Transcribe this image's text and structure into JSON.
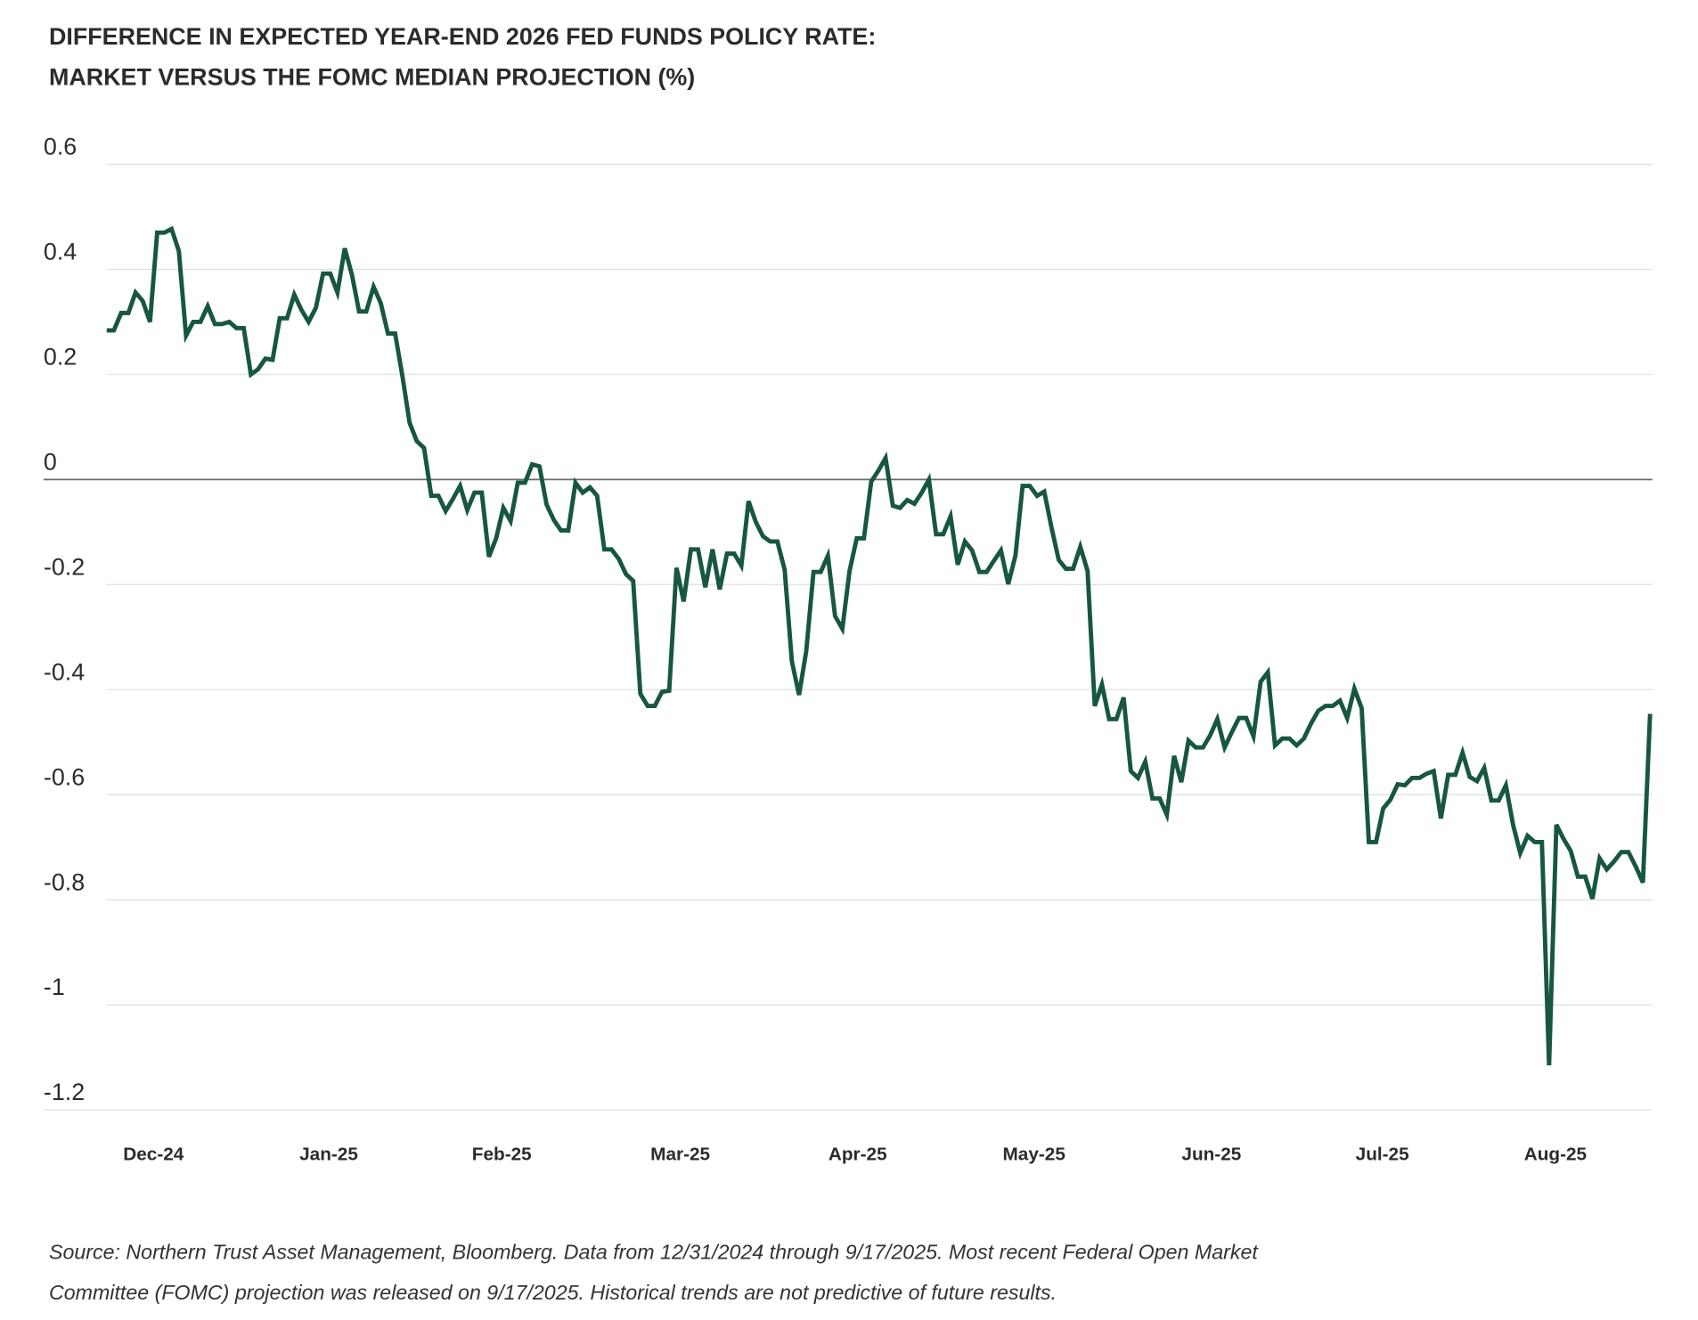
{
  "title_line1": "DIFFERENCE IN EXPECTED YEAR-END 2026 FED FUNDS POLICY RATE:",
  "title_line2": "MARKET VERSUS THE FOMC MEDIAN PROJECTION (%)",
  "footnote_line1": "Source: Northern Trust Asset Management, Bloomberg. Data from 12/31/2024 through 9/17/2025. Most recent Federal Open Market",
  "footnote_line2": "Committee (FOMC) projection was released on 9/17/2025. Historical trends are not predictive of future results.",
  "chart_data": {
    "type": "line",
    "title": "DIFFERENCE IN EXPECTED YEAR-END 2026 FED FUNDS POLICY RATE: MARKET VERSUS THE FOMC MEDIAN PROJECTION (%)",
    "xlabel": "",
    "ylabel": "",
    "x_start": "12/31/2024",
    "x_end": "9/17/2025",
    "x_tick_labels": [
      "Dec-24",
      "Jan-25",
      "Feb-25",
      "Mar-25",
      "Apr-25",
      "May-25",
      "Jun-25",
      "Jul-25",
      "Aug-25"
    ],
    "y_ticks": [
      0.6,
      0.4,
      0.2,
      0,
      -0.2,
      -0.4,
      -0.6,
      -0.8,
      -1,
      -1.2
    ],
    "y_tick_labels": [
      "0.6",
      "0.4",
      "0.2",
      "0",
      "-0.2",
      "-0.4",
      "-0.6",
      "-0.8",
      "-1",
      "-1.2"
    ],
    "ylim": [
      -1.2,
      0.6
    ],
    "grid": true,
    "line_color": "#17573f",
    "values": [
      0.284,
      0.284,
      0.317,
      0.317,
      0.356,
      0.34,
      0.3,
      0.47,
      0.47,
      0.477,
      0.435,
      0.274,
      0.3,
      0.3,
      0.33,
      0.296,
      0.296,
      0.3,
      0.288,
      0.288,
      0.2,
      0.21,
      0.23,
      0.228,
      0.307,
      0.307,
      0.352,
      0.323,
      0.3,
      0.327,
      0.392,
      0.392,
      0.356,
      0.44,
      0.39,
      0.32,
      0.32,
      0.367,
      0.336,
      0.278,
      0.278,
      0.197,
      0.108,
      0.073,
      0.06,
      -0.031,
      -0.031,
      -0.06,
      -0.037,
      -0.012,
      -0.058,
      -0.025,
      -0.025,
      -0.147,
      -0.112,
      -0.054,
      -0.079,
      -0.006,
      -0.006,
      0.029,
      0.025,
      -0.048,
      -0.077,
      -0.097,
      -0.097,
      -0.006,
      -0.025,
      -0.015,
      -0.031,
      -0.133,
      -0.133,
      -0.151,
      -0.18,
      -0.193,
      -0.408,
      -0.431,
      -0.431,
      -0.404,
      -0.402,
      -0.168,
      -0.232,
      -0.133,
      -0.133,
      -0.205,
      -0.133,
      -0.209,
      -0.141,
      -0.141,
      -0.164,
      -0.041,
      -0.081,
      -0.108,
      -0.118,
      -0.118,
      -0.172,
      -0.346,
      -0.41,
      -0.327,
      -0.176,
      -0.176,
      -0.145,
      -0.26,
      -0.284,
      -0.174,
      -0.112,
      -0.112,
      -0.004,
      0.017,
      0.041,
      -0.05,
      -0.054,
      -0.039,
      -0.046,
      -0.025,
      0,
      -0.104,
      -0.104,
      -0.07,
      -0.162,
      -0.118,
      -0.135,
      -0.176,
      -0.176,
      -0.155,
      -0.135,
      -0.199,
      -0.145,
      -0.012,
      -0.012,
      -0.031,
      -0.023,
      -0.091,
      -0.153,
      -0.17,
      -0.17,
      -0.128,
      -0.174,
      -0.431,
      -0.39,
      -0.456,
      -0.456,
      -0.415,
      -0.555,
      -0.568,
      -0.537,
      -0.607,
      -0.607,
      -0.638,
      -0.526,
      -0.576,
      -0.497,
      -0.51,
      -0.51,
      -0.487,
      -0.456,
      -0.51,
      -0.481,
      -0.454,
      -0.454,
      -0.489,
      -0.385,
      -0.367,
      -0.506,
      -0.493,
      -0.493,
      -0.506,
      -0.493,
      -0.464,
      -0.44,
      -0.431,
      -0.431,
      -0.421,
      -0.454,
      -0.398,
      -0.435,
      -0.69,
      -0.69,
      -0.626,
      -0.609,
      -0.58,
      -0.582,
      -0.568,
      -0.568,
      -0.56,
      -0.555,
      -0.645,
      -0.562,
      -0.562,
      -0.52,
      -0.566,
      -0.574,
      -0.549,
      -0.611,
      -0.611,
      -0.582,
      -0.657,
      -0.711,
      -0.678,
      -0.69,
      -0.69,
      -1.115,
      -0.657,
      -0.684,
      -0.707,
      -0.756,
      -0.756,
      -0.798,
      -0.721,
      -0.742,
      -0.727,
      -0.709,
      -0.709,
      -0.736,
      -0.767,
      -0.446
    ]
  }
}
